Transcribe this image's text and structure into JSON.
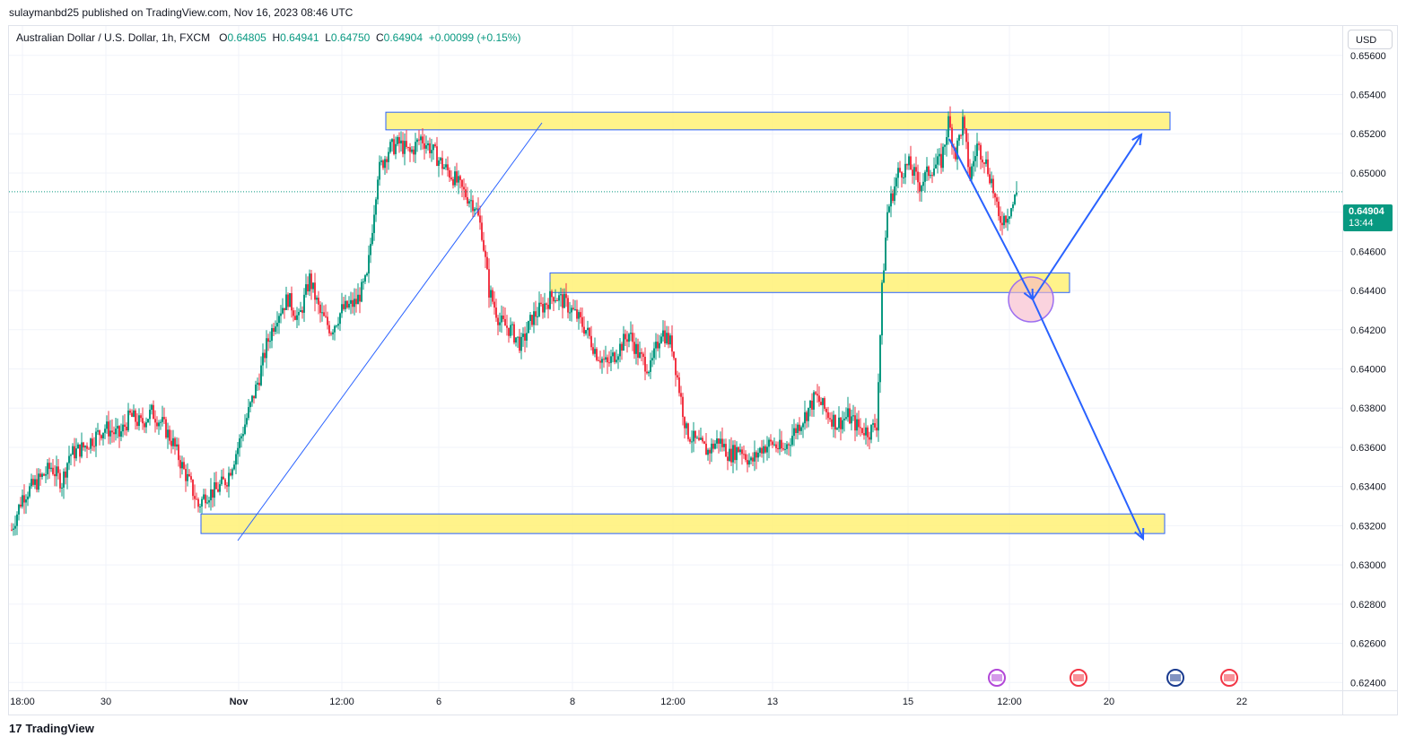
{
  "header": {
    "publish_line": "sulaymanbd25 published on TradingView.com, Nov 16, 2023 08:46 UTC"
  },
  "legend": {
    "symbol": "Australian Dollar / U.S. Dollar, 1h, FXCM",
    "open_label": "O",
    "open": "0.64805",
    "high_label": "H",
    "high": "0.64941",
    "low_label": "L",
    "low": "0.64750",
    "close_label": "C",
    "close": "0.64904",
    "change": "+0.00099 (+0.15%)"
  },
  "currency_button": "USD",
  "last_price": {
    "price": "0.64904",
    "countdown": "13:44"
  },
  "footer": {
    "brand": "TradingView",
    "logo_text": "17"
  },
  "colors": {
    "up": "#089981",
    "down": "#f23645",
    "zone_fill": "#fff176",
    "zone_stroke": "#2962ff",
    "arrow": "#2962ff",
    "circle_fill": "#f7b6c8"
  },
  "chart_data": {
    "type": "candlestick",
    "title": "Australian Dollar / U.S. Dollar, 1h, FXCM",
    "y_ticks": [
      0.656,
      0.654,
      0.652,
      0.65,
      0.648,
      0.646,
      0.644,
      0.642,
      0.64,
      0.638,
      0.636,
      0.634,
      0.632,
      0.63,
      0.628,
      0.626,
      0.624
    ],
    "y_tick_labels": [
      "0.65600",
      "0.65400",
      "0.65200",
      "0.65000",
      "0.64800",
      "0.64600",
      "0.64400",
      "0.64200",
      "0.64000",
      "0.63800",
      "0.63600",
      "0.63400",
      "0.63200",
      "0.63000",
      "0.62800",
      "0.62600",
      "0.62400"
    ],
    "ylim": [
      0.6236,
      0.6575
    ],
    "x_tick_labels": [
      "18:00",
      "30",
      "Nov",
      "12:00",
      "6",
      "8",
      "12:00",
      "13",
      "15",
      "12:00",
      "20",
      "22"
    ],
    "last_price": 0.64904,
    "price_path": [
      [
        0,
        0.6318
      ],
      [
        6,
        0.6335
      ],
      [
        16,
        0.6344
      ],
      [
        22,
        0.635
      ],
      [
        28,
        0.6342
      ],
      [
        32,
        0.6356
      ],
      [
        40,
        0.636
      ],
      [
        52,
        0.637
      ],
      [
        60,
        0.6366
      ],
      [
        66,
        0.6376
      ],
      [
        72,
        0.6372
      ],
      [
        78,
        0.6378
      ],
      [
        84,
        0.6372
      ],
      [
        90,
        0.6362
      ],
      [
        96,
        0.6348
      ],
      [
        100,
        0.634
      ],
      [
        104,
        0.633
      ],
      [
        108,
        0.6336
      ],
      [
        114,
        0.6338
      ],
      [
        120,
        0.6344
      ],
      [
        126,
        0.636
      ],
      [
        132,
        0.6378
      ],
      [
        138,
        0.6396
      ],
      [
        142,
        0.6412
      ],
      [
        148,
        0.6428
      ],
      [
        154,
        0.6436
      ],
      [
        160,
        0.6425
      ],
      [
        166,
        0.6446
      ],
      [
        172,
        0.6428
      ],
      [
        178,
        0.642
      ],
      [
        184,
        0.643
      ],
      [
        192,
        0.6434
      ],
      [
        198,
        0.6446
      ],
      [
        204,
        0.65
      ],
      [
        210,
        0.6512
      ],
      [
        216,
        0.6515
      ],
      [
        222,
        0.651
      ],
      [
        228,
        0.6518
      ],
      [
        234,
        0.6512
      ],
      [
        240,
        0.6504
      ],
      [
        246,
        0.6498
      ],
      [
        252,
        0.649
      ],
      [
        258,
        0.6484
      ],
      [
        262,
        0.647
      ],
      [
        266,
        0.644
      ],
      [
        272,
        0.6424
      ],
      [
        278,
        0.642
      ],
      [
        284,
        0.6412
      ],
      [
        290,
        0.6426
      ],
      [
        296,
        0.6432
      ],
      [
        302,
        0.6438
      ],
      [
        308,
        0.6434
      ],
      [
        314,
        0.6428
      ],
      [
        320,
        0.642
      ],
      [
        326,
        0.6408
      ],
      [
        332,
        0.6402
      ],
      [
        338,
        0.641
      ],
      [
        344,
        0.6418
      ],
      [
        350,
        0.6406
      ],
      [
        356,
        0.64
      ],
      [
        362,
        0.642
      ],
      [
        368,
        0.6412
      ],
      [
        372,
        0.639
      ],
      [
        376,
        0.6368
      ],
      [
        382,
        0.6362
      ],
      [
        388,
        0.6358
      ],
      [
        394,
        0.6364
      ],
      [
        400,
        0.6356
      ],
      [
        406,
        0.636
      ],
      [
        412,
        0.6352
      ],
      [
        418,
        0.636
      ],
      [
        424,
        0.6362
      ],
      [
        430,
        0.6358
      ],
      [
        436,
        0.6368
      ],
      [
        442,
        0.6376
      ],
      [
        448,
        0.6386
      ],
      [
        454,
        0.6378
      ],
      [
        460,
        0.6372
      ],
      [
        466,
        0.6376
      ],
      [
        472,
        0.637
      ],
      [
        478,
        0.6368
      ],
      [
        482,
        0.6372
      ],
      [
        485,
        0.644
      ],
      [
        488,
        0.648
      ],
      [
        494,
        0.65
      ],
      [
        500,
        0.6504
      ],
      [
        506,
        0.6494
      ],
      [
        512,
        0.6502
      ],
      [
        518,
        0.6506
      ],
      [
        522,
        0.6526
      ],
      [
        526,
        0.651
      ],
      [
        530,
        0.6526
      ],
      [
        534,
        0.6498
      ],
      [
        538,
        0.6514
      ],
      [
        542,
        0.6508
      ],
      [
        546,
        0.6496
      ],
      [
        550,
        0.6476
      ],
      [
        554,
        0.6478
      ],
      [
        558,
        0.6484
      ],
      [
        560,
        0.649
      ]
    ],
    "annotations": {
      "zones": [
        {
          "from": 0.6522,
          "to": 0.6531
        },
        {
          "from": 0.6439,
          "to": 0.6449
        },
        {
          "from": 0.6316,
          "to": 0.6326
        }
      ]
    }
  }
}
